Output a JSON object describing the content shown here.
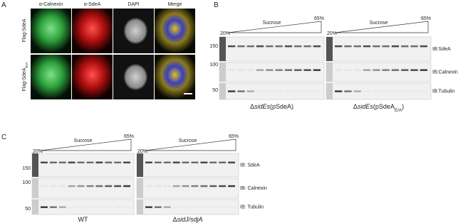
{
  "panel_a": {
    "label": "A",
    "columns": [
      "α-Calnexin",
      "α-SdeA",
      "DAPI",
      "Merge"
    ],
    "rows": [
      [
        {
          "text": "Flag-SdeA"
        }
      ],
      [
        {
          "text": "Flag-SdeA"
        },
        {
          "text": "E/A",
          "sub": true
        }
      ]
    ]
  },
  "panel_b": {
    "label": "B",
    "blots": [
      {
        "start": "20%",
        "gradient": "Sucrose",
        "end": "65%",
        "caption": [
          {
            "text": "Δ"
          },
          {
            "text": "sidEs",
            "italic": true
          },
          {
            "text": "(pSdeA)"
          }
        ]
      },
      {
        "start": "20%",
        "gradient": "Sucrose",
        "end": "65%",
        "caption": [
          {
            "text": "Δ"
          },
          {
            "text": "sidEs",
            "italic": true
          },
          {
            "text": "(pSdeA"
          },
          {
            "text": "E/A",
            "sub": true
          },
          {
            "text": ")"
          }
        ]
      }
    ],
    "markers": [
      "150",
      "100",
      "50"
    ],
    "probes": [
      "IB:SdeA",
      "IB:Calnexin",
      "IB:Tubulin"
    ]
  },
  "panel_c": {
    "label": "C",
    "blots": [
      {
        "start": "20%",
        "gradient": "Sucrose",
        "end": "65%",
        "caption": [
          {
            "text": "WT"
          }
        ]
      },
      {
        "start": "20%",
        "gradient": "Sucrose",
        "end": "65%",
        "caption": [
          {
            "text": "Δ"
          },
          {
            "text": "sidJ/sdjA",
            "italic": true
          }
        ]
      }
    ],
    "markers": [
      "150",
      "100",
      "50"
    ],
    "probes": [
      "IB: SdeA",
      "IB: Calnexin",
      "IB: Tubulin"
    ]
  }
}
